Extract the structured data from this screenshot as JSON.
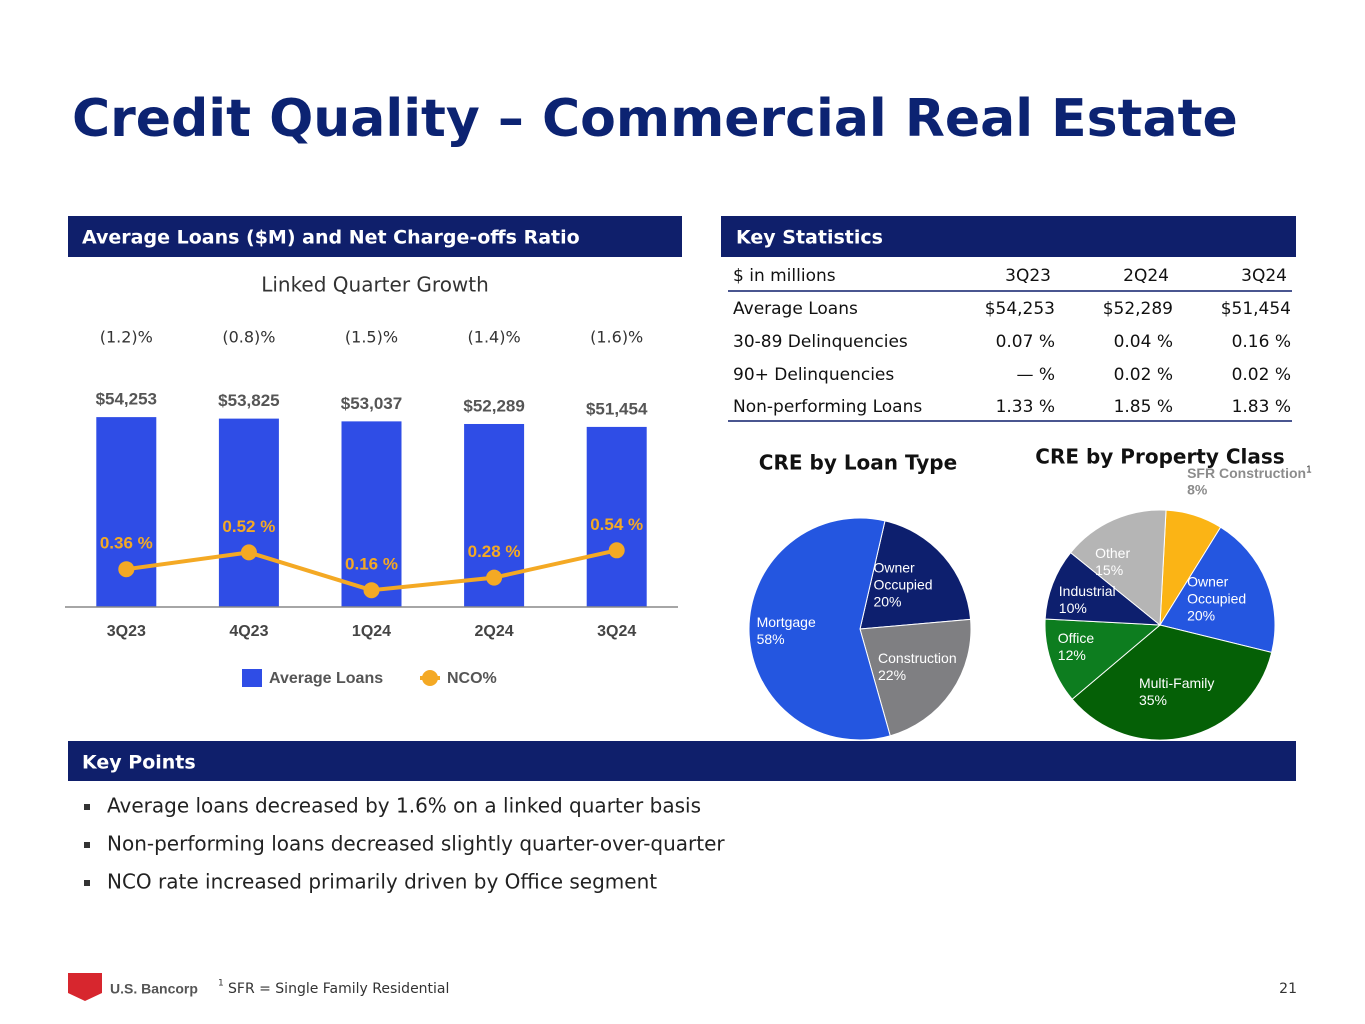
{
  "title": "Credit Quality – Commercial Real Estate",
  "chart_data": [
    {
      "type": "bar",
      "title": "Average Loans ($M) and Net Charge-offs Ratio",
      "subtitle": "Linked Quarter Growth",
      "annotations": [
        "(1.2)%",
        "(0.8)%",
        "(1.5)%",
        "(1.4)%",
        "(1.6)%"
      ],
      "categories": [
        "3Q23",
        "4Q23",
        "1Q24",
        "2Q24",
        "3Q24"
      ],
      "ylim": [
        0,
        60000
      ],
      "y2lim": [
        0,
        2
      ],
      "series": [
        {
          "name": "Average Loans",
          "type": "bar",
          "color": "#2f4de6",
          "values": [
            54253,
            53825,
            53037,
            52289,
            51454
          ],
          "value_labels": [
            "$54,253",
            "$53,825",
            "$53,037",
            "$52,289",
            "$51,454"
          ]
        },
        {
          "name": "NCO%",
          "type": "line",
          "axis": "y2",
          "color": "#f4a924",
          "values": [
            0.36,
            0.52,
            0.16,
            0.28,
            0.54
          ],
          "value_labels": [
            "0.36 %",
            "0.52 %",
            "0.16 %",
            "0.28 %",
            "0.54 %"
          ]
        }
      ]
    },
    {
      "type": "pie",
      "title": "CRE by Loan Type",
      "categories": [
        "Owner Occupied",
        "Construction",
        "Mortgage"
      ],
      "values": [
        20,
        22,
        58
      ],
      "value_labels": [
        "20%",
        "22%",
        "58%"
      ],
      "colors": [
        "#0d1f6e",
        "#7f7f82",
        "#2456e0"
      ]
    },
    {
      "type": "pie",
      "title": "CRE by Property Class",
      "footnote_marker": "1",
      "categories": [
        "SFR Construction",
        "Owner Occupied",
        "Multi-Family",
        "Office",
        "Industrial",
        "Other"
      ],
      "values": [
        8,
        20,
        35,
        12,
        10,
        15
      ],
      "value_labels": [
        "8%",
        "20%",
        "35%",
        "12%",
        "10%",
        "15%"
      ],
      "colors": [
        "#fbb415",
        "#2456e0",
        "#056006",
        "#0d7d1f",
        "#0d1f6e",
        "#b5b5b5"
      ]
    }
  ],
  "table": {
    "title": "Key Statistics",
    "header": [
      "$ in millions",
      "3Q23",
      "2Q24",
      "3Q24"
    ],
    "rows": [
      [
        "Average Loans",
        "$54,253",
        "$52,289",
        "$51,454"
      ],
      [
        "30-89 Delinquencies",
        "0.07 %",
        "0.04 %",
        "0.16 %"
      ],
      [
        "90+ Delinquencies",
        "— %",
        "0.02 %",
        "0.02 %"
      ],
      [
        "Non-performing Loans",
        "1.33 %",
        "1.85 %",
        "1.83 %"
      ]
    ]
  },
  "key_points": {
    "title": "Key Points",
    "items": [
      "Average loans decreased by 1.6%  on a linked quarter basis",
      "Non-performing loans decreased slightly quarter-over-quarter",
      "NCO rate increased primarily driven by Office segment"
    ]
  },
  "footnote": {
    "marker": "1",
    "text": "SFR = Single Family Residential"
  },
  "logo": "U.S. Bancorp",
  "page_number": "21"
}
